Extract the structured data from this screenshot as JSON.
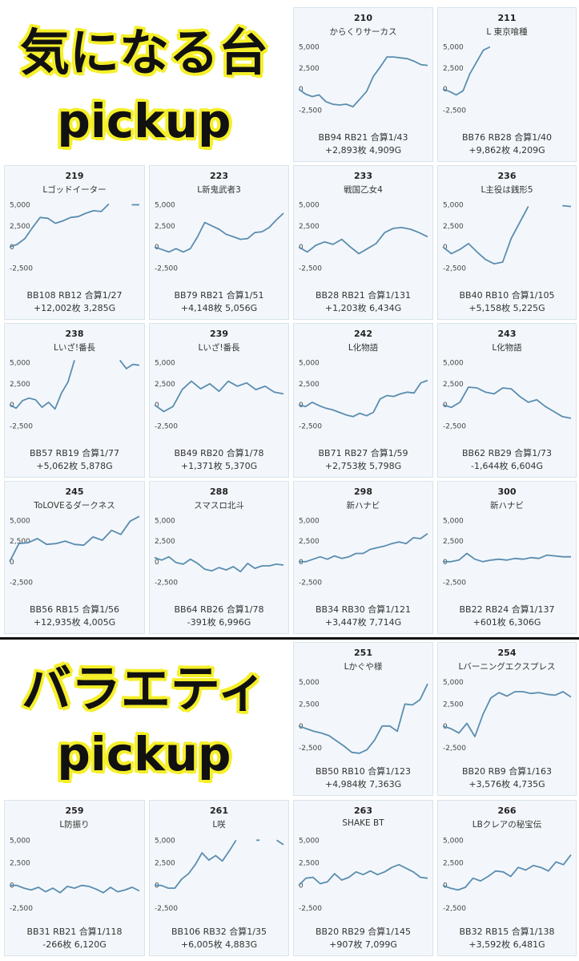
{
  "sections": [
    {
      "line1": "気になる台",
      "line2": "pickup"
    },
    {
      "line1": "バラエティ",
      "line2": "pickup"
    }
  ],
  "colors": {
    "line": "#5b8db0",
    "card_bg": "#f3f7fb",
    "heading_outline": "#f5ef2a"
  },
  "chart_data": [
    {
      "type": "line",
      "number": "210",
      "title": "からくりサーカス",
      "yticks": [
        "5,000",
        "2,500",
        "0",
        "-2,500"
      ],
      "ylim": [
        -3800,
        6000
      ],
      "values": [
        0,
        -600,
        -900,
        -700,
        -1500,
        -1800,
        -1900,
        -1800,
        -2100,
        -1200,
        -300,
        1500,
        2600,
        3800,
        3800,
        3700,
        3600,
        3300,
        2900,
        2800
      ],
      "stats1": "BB94 RB21 合算1/43",
      "stats2": "+2,893枚 4,909G"
    },
    {
      "type": "line",
      "number": "211",
      "title": "L 東京喰種",
      "yticks": [
        "5,000",
        "2,500",
        "0",
        "-2,500"
      ],
      "ylim": [
        -3800,
        6000
      ],
      "values": [
        0,
        -300,
        -700,
        -200,
        1800,
        3200,
        4600,
        5000,
        null,
        null,
        null,
        null,
        null,
        null,
        null,
        null,
        null,
        null,
        null,
        null
      ],
      "stats1": "BB76 RB28 合算1/40",
      "stats2": "+9,862枚 4,209G"
    },
    {
      "type": "line",
      "number": "219",
      "title": "Lゴッドイーター",
      "yticks": [
        "5,000",
        "2,500",
        "0",
        "-2,500"
      ],
      "ylim": [
        -3800,
        6000
      ],
      "values": [
        0,
        300,
        1000,
        2300,
        3500,
        3400,
        2800,
        3100,
        3500,
        3600,
        4000,
        4300,
        4200,
        5100,
        null,
        null,
        5000,
        5000
      ],
      "stats1": "BB108 RB12 合算1/27",
      "stats2": "+12,002枚 3,285G"
    },
    {
      "type": "line",
      "number": "223",
      "title": "L新鬼武者3",
      "yticks": [
        "5,000",
        "2,500",
        "0",
        "-2,500"
      ],
      "ylim": [
        -3800,
        6000
      ],
      "values": [
        0,
        -300,
        -600,
        -200,
        -600,
        -200,
        1200,
        2900,
        2500,
        2100,
        1500,
        1200,
        900,
        1000,
        1700,
        1800,
        2300,
        3200,
        4000
      ],
      "stats1": "BB79 RB21 合算1/51",
      "stats2": "+4,148枚 5,056G"
    },
    {
      "type": "line",
      "number": "233",
      "title": "戦国乙女4",
      "yticks": [
        "5,000",
        "2,500",
        "0",
        "-2,500"
      ],
      "ylim": [
        -3800,
        6000
      ],
      "values": [
        0,
        -600,
        200,
        600,
        300,
        900,
        0,
        -800,
        -200,
        400,
        1700,
        2200,
        2300,
        2100,
        1700,
        1200
      ],
      "stats1": "BB28 RB21 合算1/131",
      "stats2": "+1,203枚 6,434G"
    },
    {
      "type": "line",
      "number": "236",
      "title": "L主役は銭形5",
      "yticks": [
        "5,000",
        "2,500",
        "0",
        "-2,500"
      ],
      "ylim": [
        -3800,
        6000
      ],
      "values": [
        0,
        -800,
        -300,
        400,
        -600,
        -1500,
        -2000,
        -1800,
        1000,
        2900,
        4800,
        null,
        null,
        null,
        4900,
        4800
      ],
      "stats1": "BB40 RB10 合算1/105",
      "stats2": "+5,158枚 5,225G"
    },
    {
      "type": "line",
      "number": "238",
      "title": "Lいざ!番長",
      "yticks": [
        "5,000",
        "2,500",
        "0",
        "-2,500"
      ],
      "ylim": [
        -3800,
        6000
      ],
      "values": [
        0,
        -400,
        500,
        800,
        600,
        -300,
        300,
        -500,
        1400,
        2700,
        5300,
        null,
        null,
        null,
        null,
        null,
        null,
        5300,
        4300,
        4800,
        4700
      ],
      "stats1": "BB57 RB19 合算1/77",
      "stats2": "+5,062枚 5,878G"
    },
    {
      "type": "line",
      "number": "239",
      "title": "Lいざ!番長",
      "yticks": [
        "5,000",
        "2,500",
        "0",
        "-2,500"
      ],
      "ylim": [
        -3800,
        6000
      ],
      "values": [
        0,
        -800,
        -200,
        1800,
        2800,
        1900,
        2500,
        1600,
        2800,
        2200,
        2600,
        1800,
        2200,
        1500,
        1300
      ],
      "stats1": "BB49 RB20 合算1/78",
      "stats2": "+1,371枚 5,370G"
    },
    {
      "type": "line",
      "number": "242",
      "title": "L化物語",
      "yticks": [
        "5,000",
        "2,500",
        "0",
        "-2,500"
      ],
      "ylim": [
        -3800,
        6000
      ],
      "values": [
        0,
        -200,
        300,
        -100,
        -400,
        -600,
        -900,
        -1200,
        -1400,
        -1000,
        -1300,
        -900,
        700,
        1100,
        1000,
        1300,
        1500,
        1400,
        2600,
        2900
      ],
      "stats1": "BB71 RB27 合算1/59",
      "stats2": "+2,753枚 5,798G"
    },
    {
      "type": "line",
      "number": "243",
      "title": "L化物語",
      "yticks": [
        "5,000",
        "2,500",
        "0",
        "-2,500"
      ],
      "ylim": [
        -3800,
        6000
      ],
      "values": [
        0,
        -300,
        300,
        2100,
        2000,
        1500,
        1300,
        2000,
        1900,
        1000,
        300,
        600,
        -200,
        -800,
        -1400,
        -1600
      ],
      "stats1": "BB62 RB29 合算1/73",
      "stats2": "-1,644枚 6,604G"
    },
    {
      "type": "line",
      "number": "245",
      "title": "ToLOVEるダークネス",
      "yticks": [
        "5,000",
        "2,500",
        "0",
        "-2,500"
      ],
      "ylim": [
        -3800,
        6000
      ],
      "values": [
        0,
        2200,
        2300,
        2800,
        2100,
        2200,
        2500,
        2100,
        2000,
        3000,
        2600,
        3800,
        3300,
        4900,
        5500
      ],
      "stats1": "BB56 RB15 合算1/56",
      "stats2": "+12,935枚 4,005G"
    },
    {
      "type": "line",
      "number": "288",
      "title": "スマスロ北斗",
      "yticks": [
        "5,000",
        "2,500",
        "0",
        "-2,500"
      ],
      "ylim": [
        -3800,
        6000
      ],
      "values": [
        500,
        200,
        600,
        -100,
        -300,
        300,
        -200,
        -900,
        -1100,
        -700,
        -1000,
        -600,
        -1200,
        -200,
        -800,
        -500,
        -500,
        -300,
        -400
      ],
      "stats1": "BB64 RB26 合算1/78",
      "stats2": "-391枚 6,996G"
    },
    {
      "type": "line",
      "number": "298",
      "title": "新ハナビ",
      "yticks": [
        "5,000",
        "2,500",
        "0",
        "-2,500"
      ],
      "ylim": [
        -3800,
        6000
      ],
      "values": [
        0,
        0,
        300,
        600,
        300,
        700,
        400,
        600,
        1000,
        1000,
        1500,
        1700,
        1900,
        2200,
        2400,
        2200,
        2900,
        2800,
        3400
      ],
      "stats1": "BB34 RB30 合算1/121",
      "stats2": "+3,447枚 7,714G"
    },
    {
      "type": "line",
      "number": "300",
      "title": "新ハナビ",
      "yticks": [
        "5,000",
        "2,500",
        "0",
        "-2,500"
      ],
      "ylim": [
        -3800,
        6000
      ],
      "values": [
        0,
        0,
        200,
        1000,
        300,
        0,
        200,
        300,
        200,
        400,
        300,
        500,
        400,
        800,
        700,
        600,
        600
      ],
      "stats1": "BB22 RB24 合算1/137",
      "stats2": "+601枚 6,306G"
    },
    {
      "type": "line",
      "number": "251",
      "title": "Lかぐや様",
      "yticks": [
        "5,000",
        "2,500",
        "0",
        "-2,500"
      ],
      "ylim": [
        -3300,
        6000
      ],
      "values": [
        0,
        -300,
        -600,
        -800,
        -1100,
        -1700,
        -2300,
        -3000,
        -3100,
        -2700,
        -1600,
        0,
        0,
        -600,
        2500,
        2400,
        3000,
        4800
      ],
      "stats1": "BB50 RB10 合算1/123",
      "stats2": "+4,984枚 7,363G"
    },
    {
      "type": "line",
      "number": "254",
      "title": "Lバーニングエクスプレス",
      "yticks": [
        "5,000",
        "2,500",
        "0",
        "-2,500"
      ],
      "ylim": [
        -3300,
        6000
      ],
      "values": [
        0,
        -300,
        -800,
        300,
        -1200,
        1300,
        3200,
        3800,
        3400,
        3900,
        3900,
        3700,
        3800,
        3600,
        3500,
        3900,
        3300
      ],
      "stats1": "BB20 RB9 合算1/163",
      "stats2": "+3,576枚 4,735G"
    },
    {
      "type": "line",
      "number": "259",
      "title": "L防振り",
      "yticks": [
        "5,000",
        "2,500",
        "0",
        "-2,500"
      ],
      "ylim": [
        -3300,
        6000
      ],
      "values": [
        0,
        0,
        -300,
        -500,
        -200,
        -700,
        -300,
        -800,
        -100,
        -300,
        0,
        -100,
        -400,
        -800,
        -200,
        -700,
        -500,
        -200,
        -600
      ],
      "stats1": "BB31 RB21 合算1/118",
      "stats2": "-266枚 6,120G"
    },
    {
      "type": "line",
      "number": "261",
      "title": "L咲",
      "yticks": [
        "5,000",
        "2,500",
        "0",
        "-2,500"
      ],
      "ylim": [
        -3300,
        6000
      ],
      "values": [
        0,
        0,
        -300,
        -300,
        700,
        1300,
        2300,
        3600,
        2800,
        3300,
        2700,
        3800,
        5000,
        null,
        null,
        5000,
        null,
        null,
        5000,
        4500
      ],
      "stats1": "BB106 RB32 合算1/35",
      "stats2": "+6,005枚 4,883G"
    },
    {
      "type": "line",
      "number": "263",
      "title": "SHAKE BT",
      "yticks": [
        "5,000",
        "2,500",
        "0",
        "-2,500"
      ],
      "ylim": [
        -3300,
        6000
      ],
      "values": [
        0,
        800,
        900,
        200,
        400,
        1300,
        600,
        900,
        1500,
        1200,
        1600,
        1200,
        1500,
        2000,
        2300,
        1900,
        1500,
        900,
        800
      ],
      "stats1": "BB20 RB29 合算1/145",
      "stats2": "+907枚 7,099G"
    },
    {
      "type": "line",
      "number": "266",
      "title": "LBクレアの秘宝伝",
      "yticks": [
        "5,000",
        "2,500",
        "0",
        "-2,500"
      ],
      "ylim": [
        -3300,
        6000
      ],
      "values": [
        0,
        -300,
        -500,
        -200,
        800,
        500,
        1000,
        1600,
        1500,
        1000,
        2000,
        1700,
        2200,
        2000,
        1600,
        2600,
        2300,
        3400
      ],
      "stats1": "BB32 RB15 合算1/138",
      "stats2": "+3,592枚 6,481G"
    }
  ]
}
